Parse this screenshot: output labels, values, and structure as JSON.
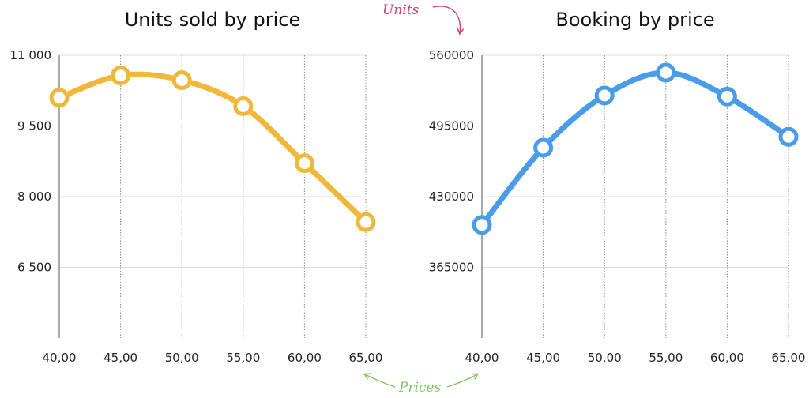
{
  "annotations": {
    "units_label": "Units",
    "units_color": "#c9417a",
    "prices_label": "Prices",
    "prices_color": "#7dc85a"
  },
  "chart_data": [
    {
      "type": "line",
      "title": "Units sold by price",
      "color": "#f0b73a",
      "x": [
        40,
        45,
        50,
        55,
        60,
        65
      ],
      "x_tick_labels": [
        "40,00",
        "45,00",
        "50,00",
        "55,00",
        "60,00",
        "65,00"
      ],
      "values": [
        10100,
        10570,
        10470,
        9920,
        8710,
        7460
      ],
      "ylim": [
        5000,
        11000
      ],
      "y_ticks": [
        6500,
        8000,
        9500,
        11000
      ],
      "y_tick_labels": [
        "6 500",
        "8 000",
        "9 500",
        "11 000"
      ],
      "grid": true,
      "smooth": true
    },
    {
      "type": "line",
      "title": "Booking by price",
      "color": "#4a9be8",
      "x": [
        40,
        45,
        50,
        55,
        60,
        65
      ],
      "x_tick_labels": [
        "40,00",
        "45,00",
        "50,00",
        "55,00",
        "60,00",
        "65,00"
      ],
      "values": [
        404000,
        475000,
        523000,
        544000,
        522000,
        485000
      ],
      "ylim": [
        300000,
        560000
      ],
      "y_ticks": [
        365000,
        430000,
        495000,
        560000
      ],
      "y_tick_labels": [
        "365000",
        "430000",
        "495000",
        "560000"
      ],
      "grid": true,
      "smooth": true
    }
  ]
}
